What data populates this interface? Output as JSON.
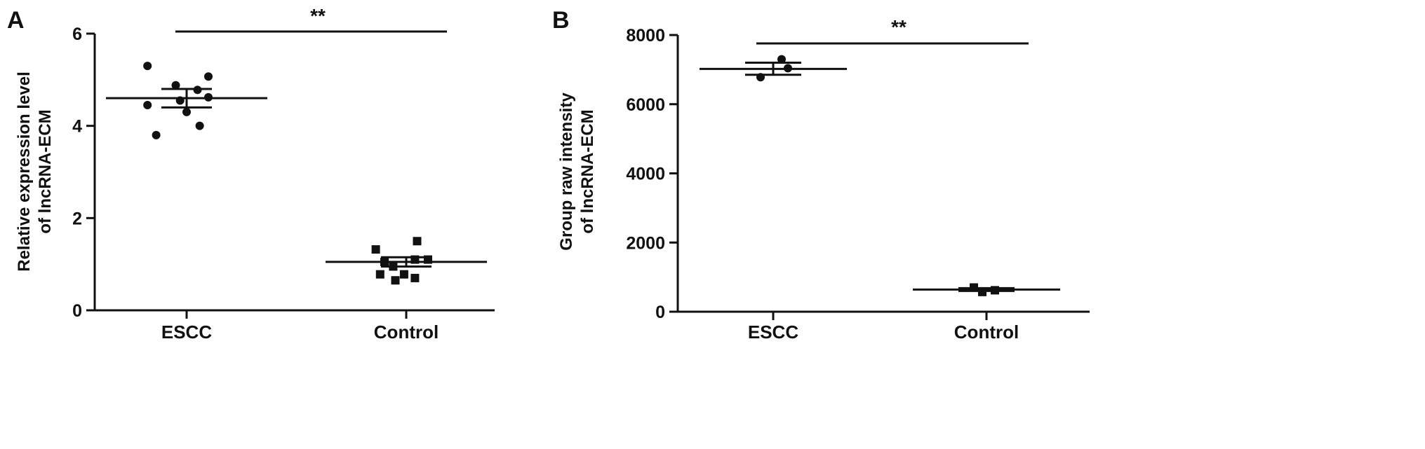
{
  "chart_data": [
    {
      "panel_label": "A",
      "type": "scatter",
      "ylabel_line1": "Relative expression level",
      "ylabel_line2": "of lncRNA-ECM",
      "ylim": [
        0,
        6
      ],
      "yticks": [
        0,
        2,
        4,
        6
      ],
      "ytick_labels": [
        "0",
        "2",
        "4",
        "6"
      ],
      "categories": [
        "ESCC",
        "Control"
      ],
      "groups": [
        {
          "name": "ESCC",
          "marker": "circle",
          "mean": 4.6,
          "error": [
            4.4,
            4.8
          ],
          "points": [
            [
              -0.18,
              5.3
            ],
            [
              0.1,
              5.07
            ],
            [
              -0.05,
              4.88
            ],
            [
              0.05,
              4.78
            ],
            [
              0.1,
              4.62
            ],
            [
              -0.03,
              4.55
            ],
            [
              -0.18,
              4.45
            ],
            [
              0.0,
              4.3
            ],
            [
              0.06,
              4.0
            ],
            [
              -0.14,
              3.8
            ]
          ]
        },
        {
          "name": "Control",
          "marker": "square",
          "mean": 1.05,
          "error": [
            0.95,
            1.15
          ],
          "points": [
            [
              -0.14,
              1.32
            ],
            [
              0.05,
              1.5
            ],
            [
              0.04,
              1.1
            ],
            [
              0.1,
              1.1
            ],
            [
              -0.1,
              1.05
            ],
            [
              -0.06,
              0.95
            ],
            [
              -0.12,
              0.78
            ],
            [
              -0.01,
              0.78
            ],
            [
              0.04,
              0.7
            ],
            [
              -0.05,
              0.65
            ]
          ]
        }
      ],
      "significance": "**"
    },
    {
      "panel_label": "B",
      "type": "scatter",
      "ylabel_line1": "Group raw intensity",
      "ylabel_line2": "of lncRNA-ECM",
      "ylim": [
        0,
        8000
      ],
      "yticks": [
        0,
        2000,
        4000,
        6000,
        8000
      ],
      "ytick_labels": [
        "0",
        "2000",
        "4000",
        "6000",
        "8000"
      ],
      "categories": [
        "ESCC",
        "Control"
      ],
      "groups": [
        {
          "name": "ESCC",
          "marker": "circle",
          "mean": 7020,
          "error": [
            6850,
            7200
          ],
          "points": [
            [
              0.04,
              7300
            ],
            [
              0.07,
              7040
            ],
            [
              -0.06,
              6780
            ]
          ]
        },
        {
          "name": "Control",
          "marker": "square",
          "mean": 640,
          "error": [
            600,
            680
          ],
          "points": [
            [
              -0.06,
              700
            ],
            [
              0.04,
              620
            ],
            [
              -0.02,
              570
            ]
          ]
        }
      ],
      "significance": "**"
    }
  ]
}
